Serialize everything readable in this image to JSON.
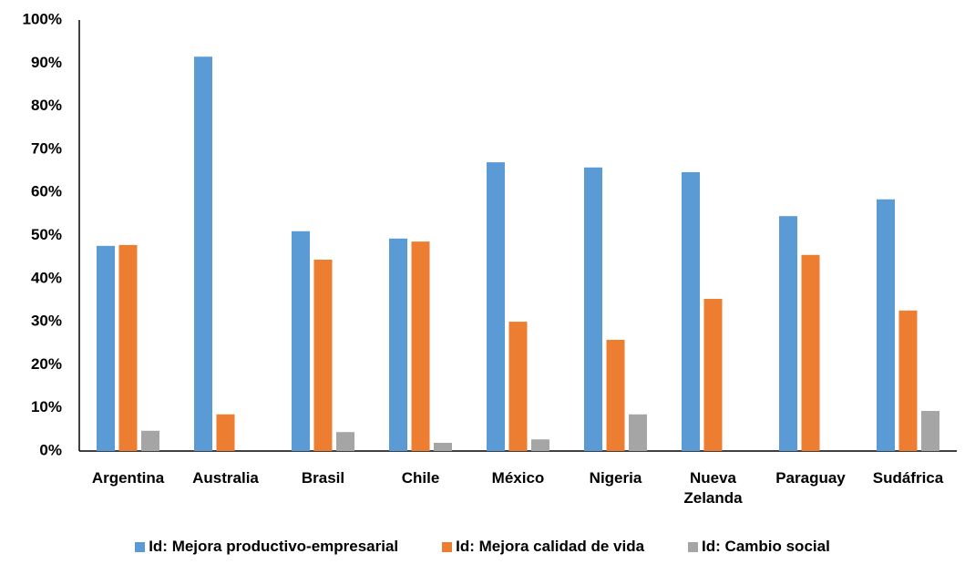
{
  "chart_data": {
    "type": "bar",
    "categories": [
      "Argentina",
      "Australia",
      "Brasil",
      "Chile",
      "México",
      "Nigeria",
      "Nueva Zelanda",
      "Paraguay",
      "Sudáfrica"
    ],
    "series": [
      {
        "name": "Id: Mejora productivo-empresarial",
        "color": "#5b9bd5",
        "values": [
          47.6,
          91.5,
          51,
          49.3,
          67,
          65.8,
          64.7,
          54.5,
          58.4
        ]
      },
      {
        "name": "Id: Mejora calidad de vida",
        "color": "#ed7d31",
        "values": [
          47.8,
          8.5,
          44.4,
          48.6,
          30,
          25.8,
          35.3,
          45.5,
          32.6
        ]
      },
      {
        "name": "Id: Cambio social",
        "color": "#a5a5a5",
        "values": [
          4.7,
          null,
          4.4,
          1.9,
          2.7,
          8.5,
          null,
          null,
          9.3
        ]
      }
    ],
    "ylim": [
      0,
      100
    ],
    "yticks": [
      {
        "value": 0,
        "label": "0%"
      },
      {
        "value": 10,
        "label": "10%"
      },
      {
        "value": 20,
        "label": "20%"
      },
      {
        "value": 30,
        "label": "30%"
      },
      {
        "value": 40,
        "label": "40%"
      },
      {
        "value": 50,
        "label": "50%"
      },
      {
        "value": 60,
        "label": "60%"
      },
      {
        "value": 70,
        "label": "70%"
      },
      {
        "value": 80,
        "label": "80%"
      },
      {
        "value": 90,
        "label": "90%"
      },
      {
        "value": 100,
        "label": "100%"
      }
    ],
    "grid": false,
    "legend": "bottom"
  }
}
